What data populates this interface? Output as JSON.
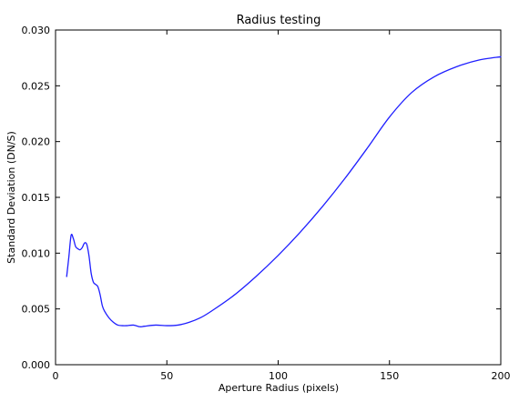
{
  "chart_data": {
    "type": "line",
    "title": "Radius testing",
    "xlabel": "Aperture Radius (pixels)",
    "ylabel": "Standard Deviation (DN/S)",
    "xlim": [
      0,
      200
    ],
    "ylim": [
      0.0,
      0.03
    ],
    "xticks": [
      0,
      50,
      100,
      150,
      200
    ],
    "xtick_labels": [
      "0",
      "50",
      "100",
      "150",
      "200"
    ],
    "yticks": [
      0.0,
      0.005,
      0.01,
      0.015,
      0.02,
      0.025,
      0.03
    ],
    "ytick_labels": [
      "0.000",
      "0.005",
      "0.010",
      "0.015",
      "0.020",
      "0.025",
      "0.030"
    ],
    "grid": false,
    "legend": "none",
    "series": [
      {
        "color": "#1f1fff",
        "x": [
          5,
          6,
          7,
          8,
          9,
          10,
          11,
          12,
          13,
          14,
          15,
          16,
          17,
          18,
          19,
          20,
          21,
          22,
          24,
          26,
          28,
          30,
          32,
          35,
          38,
          40,
          45,
          50,
          55,
          60,
          65,
          70,
          80,
          90,
          100,
          110,
          120,
          130,
          140,
          150,
          160,
          170,
          180,
          190,
          200
        ],
        "y": [
          0.0079,
          0.0097,
          0.0116,
          0.0113,
          0.0106,
          0.0104,
          0.0103,
          0.0105,
          0.0109,
          0.0108,
          0.0098,
          0.0082,
          0.0074,
          0.0072,
          0.007,
          0.0063,
          0.0053,
          0.0048,
          0.0042,
          0.0038,
          0.00355,
          0.0035,
          0.0035,
          0.00355,
          0.0034,
          0.00345,
          0.00355,
          0.0035,
          0.00355,
          0.0038,
          0.0042,
          0.0048,
          0.0062,
          0.0079,
          0.0098,
          0.0119,
          0.0142,
          0.0167,
          0.0194,
          0.0222,
          0.0244,
          0.0258,
          0.0267,
          0.0273,
          0.0276
        ]
      }
    ]
  }
}
